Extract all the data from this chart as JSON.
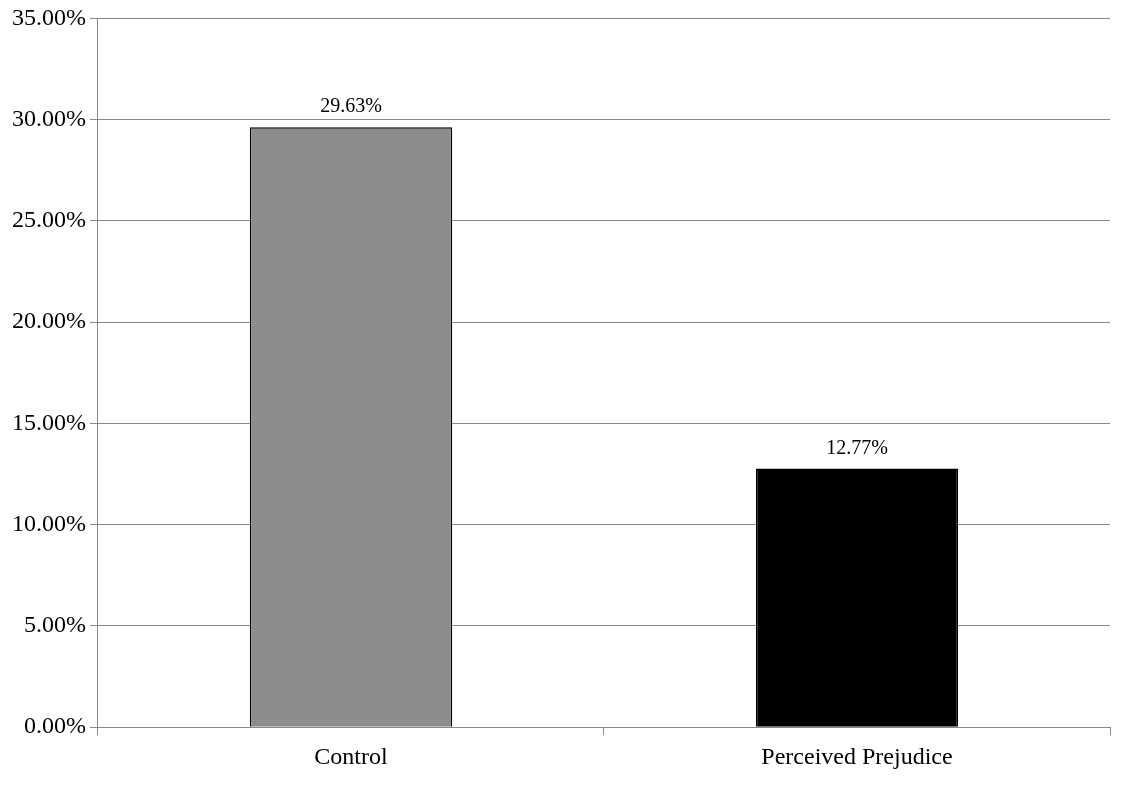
{
  "chart_data": {
    "type": "bar",
    "categories": [
      "Control",
      "Perceived Prejudice"
    ],
    "values": [
      29.63,
      12.77
    ],
    "colors": [
      "#8c8c8c",
      "#000000"
    ],
    "value_labels": [
      "29.63%",
      "12.77%"
    ],
    "ylim": [
      0,
      35
    ],
    "yticks": [
      {
        "value": 0,
        "label": "0.00%"
      },
      {
        "value": 5,
        "label": "5.00%"
      },
      {
        "value": 10,
        "label": "10.00%"
      },
      {
        "value": 15,
        "label": "15.00%"
      },
      {
        "value": 20,
        "label": "20.00%"
      },
      {
        "value": 25,
        "label": "25.00%"
      },
      {
        "value": 30,
        "label": "30.00%"
      },
      {
        "value": 35,
        "label": "35.00%"
      }
    ],
    "grid": "y",
    "legend": false
  }
}
